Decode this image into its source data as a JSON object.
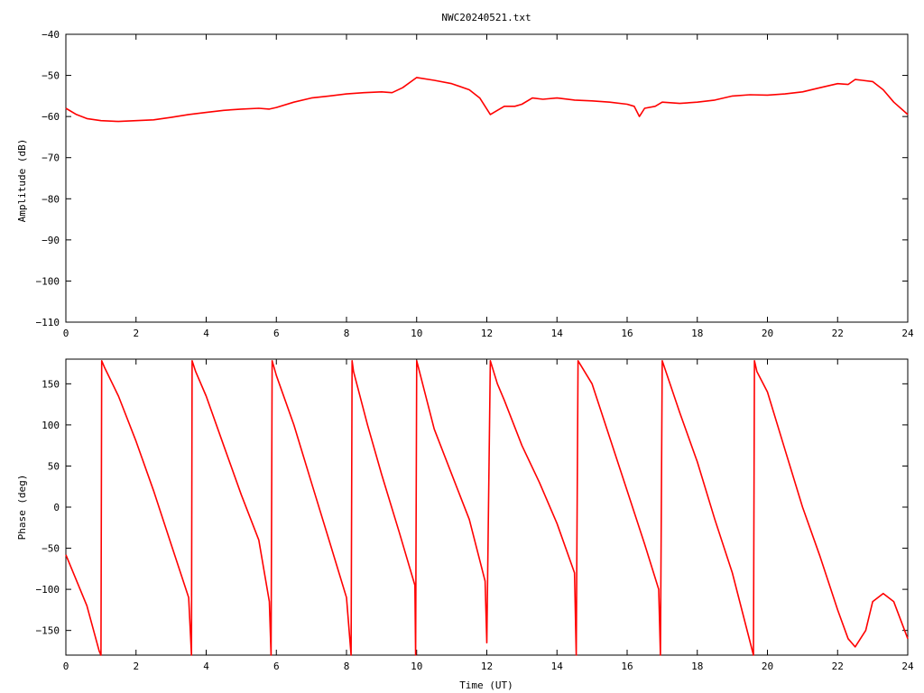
{
  "chart_data": [
    {
      "type": "line",
      "title": "NWC20240521.txt",
      "xlabel": "",
      "ylabel": "Amplitude (dB)",
      "xlim": [
        0,
        24
      ],
      "ylim": [
        -110,
        -40
      ],
      "x_ticks": [
        "0",
        "2",
        "4",
        "6",
        "8",
        "10",
        "12",
        "14",
        "16",
        "18",
        "20",
        "22",
        "24"
      ],
      "y_ticks": [
        "-40",
        "-50",
        "-60",
        "-70",
        "-80",
        "-90",
        "-100",
        "-110"
      ],
      "color": "#ff0000",
      "series": [
        {
          "x": [
            0,
            0.3,
            0.6,
            1.0,
            1.5,
            2.0,
            2.5,
            3.0,
            3.5,
            4.0,
            4.5,
            5.0,
            5.5,
            5.8,
            6.0,
            6.5,
            7.0,
            7.5,
            8.0,
            8.5,
            9.0,
            9.3,
            9.6,
            10.0,
            10.5,
            11.0,
            11.5,
            11.8,
            12.1,
            12.3,
            12.5,
            12.8,
            13.0,
            13.3,
            13.6,
            14.0,
            14.5,
            15.0,
            15.5,
            16.0,
            16.2,
            16.35,
            16.5,
            16.8,
            17.0,
            17.5,
            18.0,
            18.5,
            19.0,
            19.5,
            20.0,
            20.5,
            21.0,
            21.5,
            22.0,
            22.3,
            22.5,
            22.7,
            23.0,
            23.3,
            23.6,
            24.0
          ],
          "values": [
            -58,
            -59.5,
            -60.5,
            -61,
            -61.2,
            -61,
            -60.8,
            -60.2,
            -59.5,
            -59,
            -58.5,
            -58.2,
            -58,
            -58.2,
            -57.8,
            -56.5,
            -55.5,
            -55,
            -54.5,
            -54.2,
            -54,
            -54.2,
            -53,
            -50.5,
            -51.2,
            -52,
            -53.5,
            -55.5,
            -59.5,
            -58.5,
            -57.5,
            -57.5,
            -57,
            -55.5,
            -55.8,
            -55.5,
            -56,
            -56.2,
            -56.5,
            -57,
            -57.5,
            -60,
            -58,
            -57.5,
            -56.5,
            -56.8,
            -56.5,
            -56,
            -55,
            -54.7,
            -54.8,
            -54.5,
            -54,
            -53,
            -52,
            -52.2,
            -51,
            -51.2,
            -51.5,
            -53.5,
            -56.5,
            -59.5
          ]
        }
      ]
    },
    {
      "type": "line",
      "title": "",
      "xlabel": "Time (UT)",
      "ylabel": "Phase (deg)",
      "xlim": [
        0,
        24
      ],
      "ylim": [
        -180,
        180
      ],
      "x_ticks": [
        "0",
        "2",
        "4",
        "6",
        "8",
        "10",
        "12",
        "14",
        "16",
        "18",
        "20",
        "22",
        "24"
      ],
      "y_ticks": [
        "150",
        "100",
        "50",
        "0",
        "-50",
        "-100",
        "-150"
      ],
      "y_tick_values": [
        150,
        100,
        50,
        0,
        -50,
        -100,
        -150
      ],
      "color": "#ff0000",
      "series": [
        {
          "x": [
            0,
            0.6,
            0.95,
            1.0,
            1.02,
            1.1,
            1.5,
            2.0,
            2.5,
            3.0,
            3.5,
            3.58,
            3.6,
            3.7,
            4.0,
            4.5,
            5.0,
            5.5,
            5.8,
            5.85,
            5.88,
            6.0,
            6.5,
            7.0,
            7.5,
            8.0,
            8.13,
            8.16,
            8.2,
            8.6,
            9.0,
            9.5,
            9.95,
            9.97,
            10.0,
            10.5,
            11.0,
            11.5,
            11.95,
            12.0,
            12.1,
            12.3,
            12.5,
            13.0,
            13.5,
            14.0,
            14.5,
            14.55,
            14.6,
            15.0,
            15.5,
            16.0,
            16.5,
            16.9,
            16.95,
            17.0,
            17.5,
            18.0,
            18.5,
            19.0,
            19.6,
            19.63,
            19.7,
            20.0,
            20.5,
            21.0,
            21.5,
            22.0,
            22.3,
            22.5,
            22.8,
            23.0,
            23.3,
            23.6,
            24.0
          ],
          "values": [
            -58,
            -120,
            -175,
            -180,
            178,
            170,
            135,
            80,
            20,
            -45,
            -110,
            -180,
            178,
            165,
            135,
            75,
            15,
            -40,
            -115,
            -180,
            178,
            160,
            100,
            30,
            -40,
            -110,
            -180,
            178,
            165,
            100,
            40,
            -30,
            -95,
            -180,
            178,
            95,
            40,
            -15,
            -90,
            -165,
            178,
            150,
            130,
            75,
            30,
            -20,
            -80,
            -180,
            178,
            150,
            85,
            20,
            -45,
            -100,
            -180,
            178,
            115,
            55,
            -15,
            -80,
            -180,
            178,
            165,
            140,
            70,
            0,
            -60,
            -125,
            -160,
            -170,
            -150,
            -115,
            -105,
            -115,
            -160
          ]
        }
      ]
    }
  ]
}
